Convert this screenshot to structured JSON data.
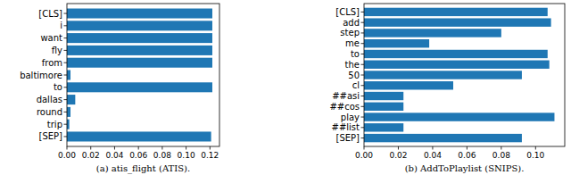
{
  "chart_data": [
    {
      "type": "bar",
      "orientation": "horizontal",
      "title": "(a) atis_flight (ATIS).",
      "categories": [
        "[CLS]",
        "i",
        "want",
        "fly",
        "from",
        "baltimore",
        "to",
        "dallas",
        "round",
        "trip",
        "[SEP]"
      ],
      "values": [
        0.122,
        0.122,
        0.122,
        0.122,
        0.122,
        0.003,
        0.122,
        0.007,
        0.003,
        0.002,
        0.121
      ],
      "color": "#1f77b4",
      "xlim": [
        0,
        0.128
      ],
      "xticks": [
        {
          "value": 0,
          "label": "0.00"
        },
        {
          "value": 0.02,
          "label": "0.02"
        },
        {
          "value": 0.04,
          "label": "0.04"
        },
        {
          "value": 0.06,
          "label": "0.06"
        },
        {
          "value": 0.08,
          "label": "0.08"
        },
        {
          "value": 0.1,
          "label": "0.10"
        },
        {
          "value": 0.12,
          "label": "0.12"
        }
      ]
    },
    {
      "type": "bar",
      "orientation": "horizontal",
      "title": "(b) AddToPlaylist (SNIPS).",
      "categories": [
        "[CLS]",
        "add",
        "step",
        "me",
        "to",
        "the",
        "50",
        "cl",
        "##asi",
        "##cos",
        "play",
        "##list",
        "[SEP]"
      ],
      "values": [
        0.107,
        0.109,
        0.08,
        0.038,
        0.107,
        0.108,
        0.092,
        0.052,
        0.023,
        0.023,
        0.111,
        0.023,
        0.092
      ],
      "color": "#1f77b4",
      "xlim": [
        0,
        0.117
      ],
      "xticks": [
        {
          "value": 0,
          "label": "0.00"
        },
        {
          "value": 0.02,
          "label": "0.02"
        },
        {
          "value": 0.04,
          "label": "0.04"
        },
        {
          "value": 0.06,
          "label": "0.06"
        },
        {
          "value": 0.08,
          "label": "0.08"
        },
        {
          "value": 0.1,
          "label": "0.10"
        }
      ]
    }
  ]
}
